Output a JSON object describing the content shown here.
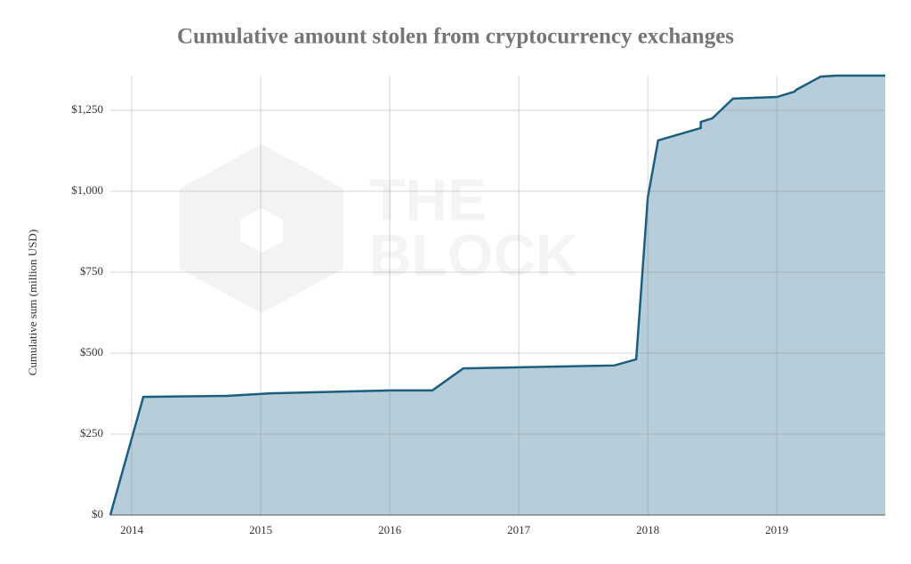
{
  "chart_data": {
    "type": "area",
    "title": "Cumulative amount  stolen from cryptocurrency exchanges",
    "y_label": "Cumulative sum (million USD)",
    "watermark": [
      "THE",
      "BLOCK"
    ],
    "x": [
      2013.834,
      2014.09,
      2014.74,
      2015.08,
      2016.01,
      2016.33,
      2016.57,
      2017.74,
      2017.91,
      2018.0,
      2018.08,
      2018.41,
      2018.411,
      2018.5,
      2018.66,
      2019.0,
      2019.14,
      2019.15,
      2019.34,
      2019.46,
      2019.84
    ],
    "series": [
      {
        "color": "#1b5f7f",
        "fill": "#b7cdd9",
        "values": [
          0,
          365,
          368,
          376,
          385,
          385,
          453,
          462,
          481,
          981,
          1157,
          1195,
          1214,
          1225,
          1286,
          1291,
          1308,
          1313,
          1354,
          1357,
          1357
        ]
      }
    ],
    "xlim": [
      2013.834,
      2019.84
    ],
    "xticks": [
      2014,
      2015,
      2016,
      2017,
      2018,
      2019
    ],
    "ylim": [
      0,
      1357
    ],
    "yticks": [
      {
        "value": 0,
        "label": "$0"
      },
      {
        "value": 250,
        "label": "$250"
      },
      {
        "value": 500,
        "label": "$500"
      },
      {
        "value": 750,
        "label": "$750"
      },
      {
        "value": 1000,
        "label": "$1,000"
      },
      {
        "value": 1250,
        "label": "$1,250"
      }
    ],
    "grid": true
  }
}
